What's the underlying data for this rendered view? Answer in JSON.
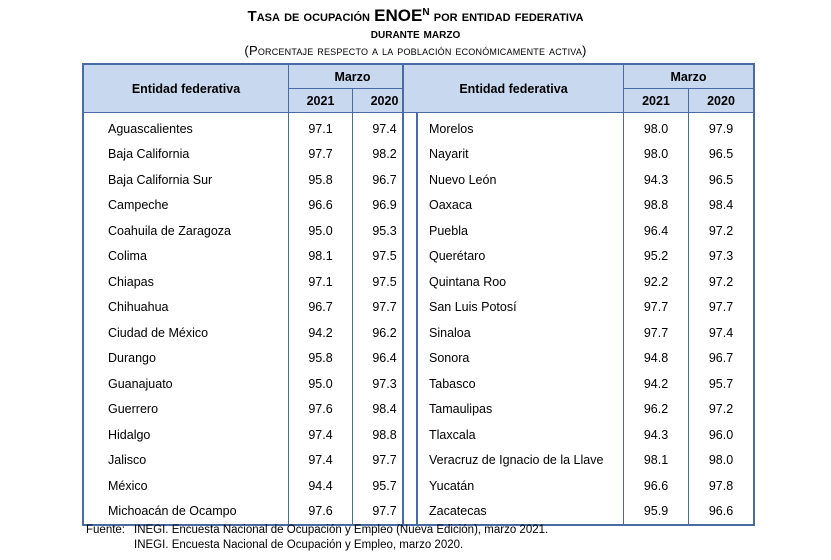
{
  "header": {
    "title_prefix": "Tasa de ocupación ",
    "title_enoe": "ENOE",
    "title_sup": "N",
    "title_suffix": " por entidad federativa",
    "title_line2": "durante marzo",
    "subtitle": "(Porcentaje respecto a la población económicamente activa)"
  },
  "table": {
    "col_entity": "Entidad federativa",
    "col_group": "Marzo",
    "col_2021": "2021",
    "col_2020": "2020"
  },
  "left_rows": [
    {
      "name": "Aguascalientes",
      "y2021": "97.1",
      "y2020": "97.4"
    },
    {
      "name": "Baja California",
      "y2021": "97.7",
      "y2020": "98.2"
    },
    {
      "name": "Baja California Sur",
      "y2021": "95.8",
      "y2020": "96.7"
    },
    {
      "name": "Campeche",
      "y2021": "96.6",
      "y2020": "96.9"
    },
    {
      "name": "Coahuila de Zaragoza",
      "y2021": "95.0",
      "y2020": "95.3"
    },
    {
      "name": "Colima",
      "y2021": "98.1",
      "y2020": "97.5"
    },
    {
      "name": "Chiapas",
      "y2021": "97.1",
      "y2020": "97.5"
    },
    {
      "name": "Chihuahua",
      "y2021": "96.7",
      "y2020": "97.7"
    },
    {
      "name": "Ciudad de México",
      "y2021": "94.2",
      "y2020": "96.2"
    },
    {
      "name": "Durango",
      "y2021": "95.8",
      "y2020": "96.4"
    },
    {
      "name": "Guanajuato",
      "y2021": "95.0",
      "y2020": "97.3"
    },
    {
      "name": "Guerrero",
      "y2021": "97.6",
      "y2020": "98.4"
    },
    {
      "name": "Hidalgo",
      "y2021": "97.4",
      "y2020": "98.8"
    },
    {
      "name": "Jalisco",
      "y2021": "97.4",
      "y2020": "97.7"
    },
    {
      "name": "México",
      "y2021": "94.4",
      "y2020": "95.7"
    },
    {
      "name": "Michoacán de Ocampo",
      "y2021": "97.6",
      "y2020": "97.7"
    }
  ],
  "right_rows": [
    {
      "name": "Morelos",
      "y2021": "98.0",
      "y2020": "97.9"
    },
    {
      "name": "Nayarit",
      "y2021": "98.0",
      "y2020": "96.5"
    },
    {
      "name": "Nuevo León",
      "y2021": "94.3",
      "y2020": "96.5"
    },
    {
      "name": "Oaxaca",
      "y2021": "98.8",
      "y2020": "98.4"
    },
    {
      "name": "Puebla",
      "y2021": "96.4",
      "y2020": "97.2"
    },
    {
      "name": "Querétaro",
      "y2021": "95.2",
      "y2020": "97.3"
    },
    {
      "name": "Quintana Roo",
      "y2021": "92.2",
      "y2020": "97.2"
    },
    {
      "name": "San Luis Potosí",
      "y2021": "97.7",
      "y2020": "97.7"
    },
    {
      "name": "Sinaloa",
      "y2021": "97.7",
      "y2020": "97.4"
    },
    {
      "name": "Sonora",
      "y2021": "94.8",
      "y2020": "96.7"
    },
    {
      "name": "Tabasco",
      "y2021": "94.2",
      "y2020": "95.7"
    },
    {
      "name": "Tamaulipas",
      "y2021": "96.2",
      "y2020": "97.2"
    },
    {
      "name": "Tlaxcala",
      "y2021": "94.3",
      "y2020": "96.0"
    },
    {
      "name": "Veracruz de Ignacio de la Llave",
      "y2021": "98.1",
      "y2020": "98.0"
    },
    {
      "name": "Yucatán",
      "y2021": "96.6",
      "y2020": "97.8"
    },
    {
      "name": "Zacatecas",
      "y2021": "95.9",
      "y2020": "96.6"
    }
  ],
  "footer": {
    "label": "Fuente:",
    "line1": "INEGI. Encuesta Nacional de Ocupación y Empleo (Nueva Edición), marzo 2021.",
    "line2": "INEGI. Encuesta Nacional de Ocupación y Empleo, marzo 2020."
  }
}
